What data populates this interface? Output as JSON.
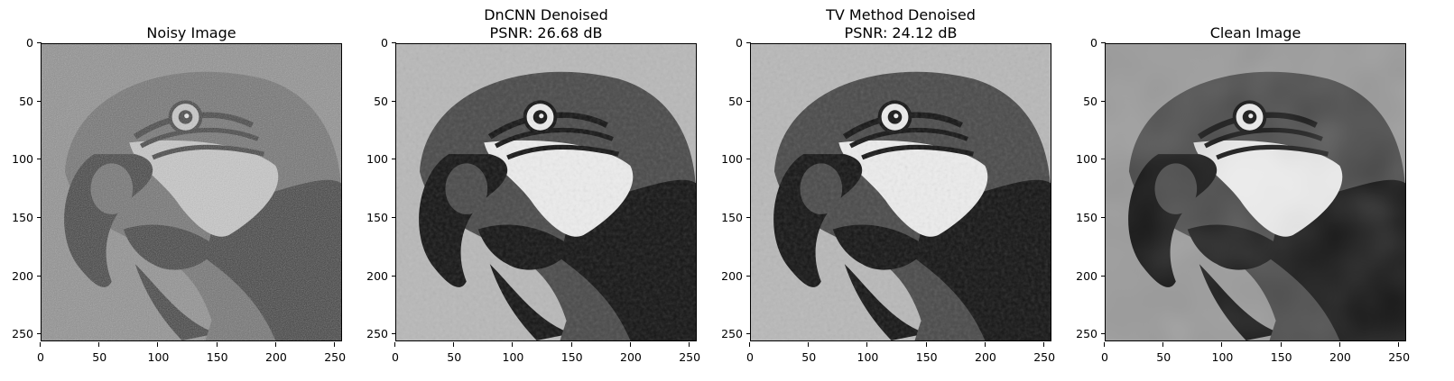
{
  "panels": [
    {
      "title_lines": [
        "Noisy Image"
      ]
    },
    {
      "title_lines": [
        "DnCNN Denoised",
        "PSNR: 26.68 dB"
      ]
    },
    {
      "title_lines": [
        "TV Method Denoised",
        "PSNR: 24.12 dB"
      ]
    },
    {
      "title_lines": [
        "Clean Image"
      ]
    }
  ],
  "axis": {
    "x_ticks": [
      "0",
      "50",
      "100",
      "150",
      "200",
      "250"
    ],
    "y_ticks": [
      "0",
      "50",
      "100",
      "150",
      "200",
      "250"
    ],
    "xlim": [
      0,
      256
    ],
    "ylim": [
      256,
      0
    ]
  },
  "image_subject": "grayscale close-up of a parrot (macaw) head"
}
